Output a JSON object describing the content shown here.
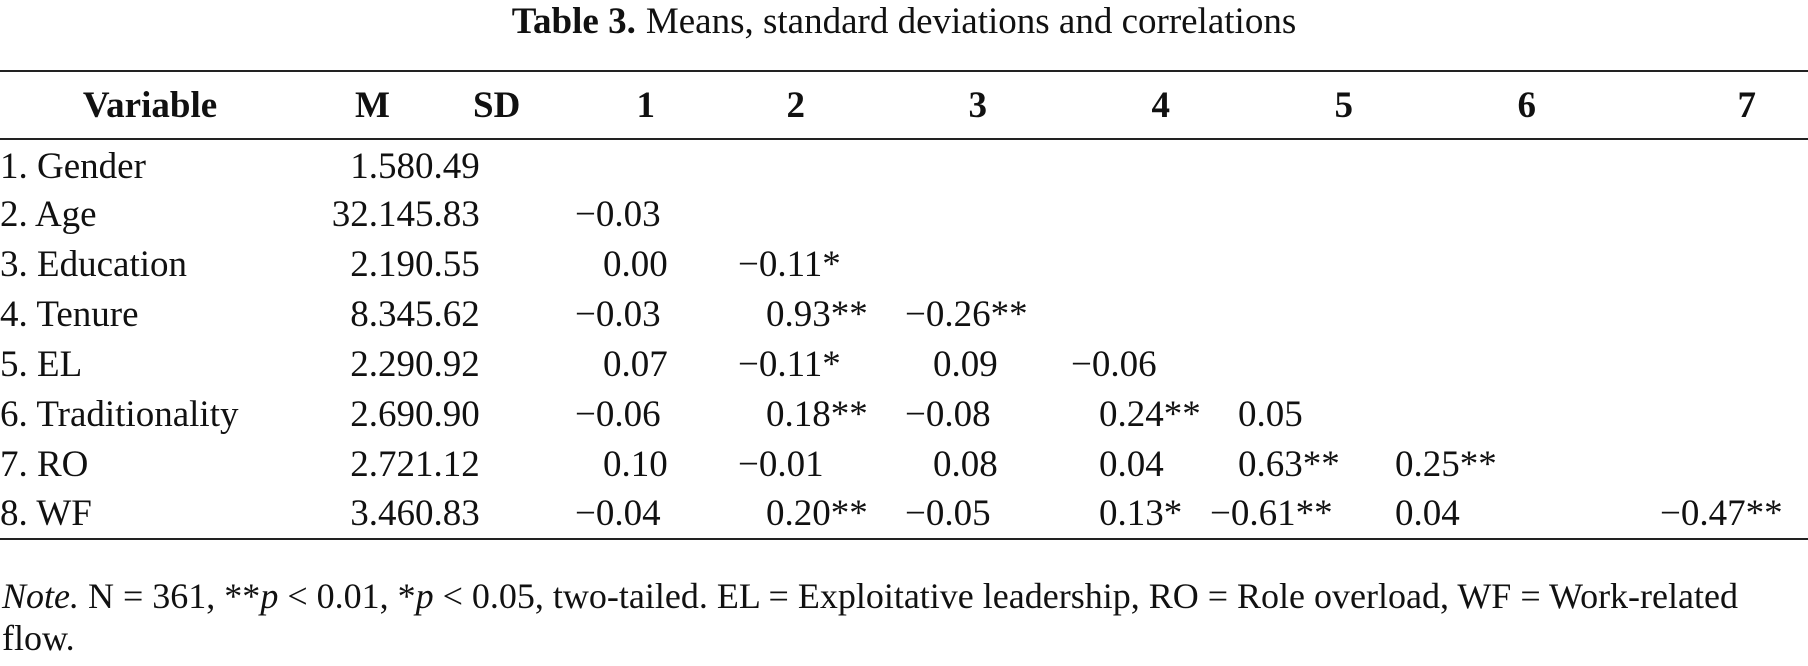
{
  "caption": {
    "label": "Table 3.",
    "text": "Means, standard deviations and correlations"
  },
  "table": {
    "headers": [
      "Variable",
      "M",
      "SD",
      "1",
      "2",
      "3",
      "4",
      "5",
      "6",
      "7"
    ],
    "rows": [
      [
        "1. Gender",
        "1.58",
        "0.49",
        "",
        "",
        "",
        "",
        "",
        "",
        ""
      ],
      [
        "2. Age",
        "32.14",
        "5.83",
        "−0.03",
        "",
        "",
        "",
        "",
        "",
        ""
      ],
      [
        "3. Education",
        "2.19",
        "0.55",
        "0.00",
        "−0.11*",
        "",
        "",
        "",
        "",
        ""
      ],
      [
        "4. Tenure",
        "8.34",
        "5.62",
        "−0.03",
        "0.93**",
        "−0.26**",
        "",
        "",
        "",
        ""
      ],
      [
        "5. EL",
        "2.29",
        "0.92",
        "0.07",
        "−0.11*",
        "0.09",
        "−0.06",
        "",
        "",
        ""
      ],
      [
        "6. Traditionality",
        "2.69",
        "0.90",
        "−0.06",
        "0.18**",
        "−0.08",
        "0.24**",
        "0.05",
        "",
        ""
      ],
      [
        "7. RO",
        "2.72",
        "1.12",
        "0.10",
        "−0.01",
        "0.08",
        "0.04",
        "0.63**",
        "0.25**",
        ""
      ],
      [
        "8. WF",
        "3.46",
        "0.83",
        "−0.04",
        "0.20**",
        "−0.05",
        "0.13*",
        "−0.61**",
        "0.04",
        "−0.47**"
      ]
    ]
  },
  "note": {
    "label": "Note.",
    "text_a": " N = 361, **",
    "p1": "p",
    "text_b": " < 0.01, *",
    "p2": "p",
    "text_c": " < 0.05, two-tailed. EL = Exploitative leadership, RO = Role overload, WF = Work-related flow."
  }
}
